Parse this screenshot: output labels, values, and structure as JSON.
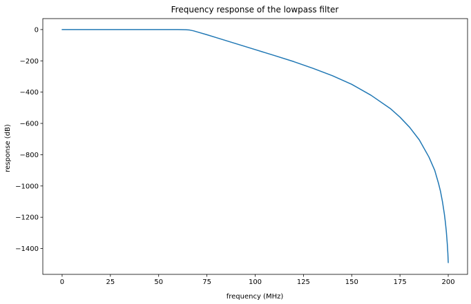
{
  "chart_data": {
    "type": "line",
    "title": "Frequency response of the lowpass filter",
    "xlabel": "frequency (MHz)",
    "ylabel": "response (dB)",
    "xlim": [
      -10,
      210
    ],
    "ylim": [
      -1565,
      70
    ],
    "xticks": [
      0,
      25,
      50,
      75,
      100,
      125,
      150,
      175,
      200
    ],
    "yticks": [
      0,
      -200,
      -400,
      -600,
      -800,
      -1000,
      -1200,
      -1400
    ],
    "ytick_labels": [
      "0",
      "−200",
      "−400",
      "−600",
      "−800",
      "−1000",
      "−1200",
      "−1400"
    ],
    "grid": false,
    "colors": {
      "line": "#1f77b4"
    },
    "series": [
      {
        "x": [
          0,
          10,
          20,
          30,
          40,
          50,
          60,
          64,
          66,
          68,
          70,
          75,
          80,
          90,
          100,
          110,
          120,
          130,
          140,
          150,
          160,
          170,
          175,
          180,
          185,
          190,
          193,
          195,
          196,
          197,
          198,
          198.5,
          199,
          199.5,
          199.8,
          200
        ],
        "y": [
          0,
          0,
          0,
          0,
          0,
          0,
          0,
          -1,
          -3,
          -8,
          -15,
          -33,
          -52,
          -90,
          -128,
          -166,
          -205,
          -248,
          -295,
          -350,
          -420,
          -505,
          -560,
          -625,
          -705,
          -815,
          -900,
          -985,
          -1035,
          -1100,
          -1180,
          -1230,
          -1290,
          -1370,
          -1430,
          -1490
        ]
      }
    ]
  }
}
